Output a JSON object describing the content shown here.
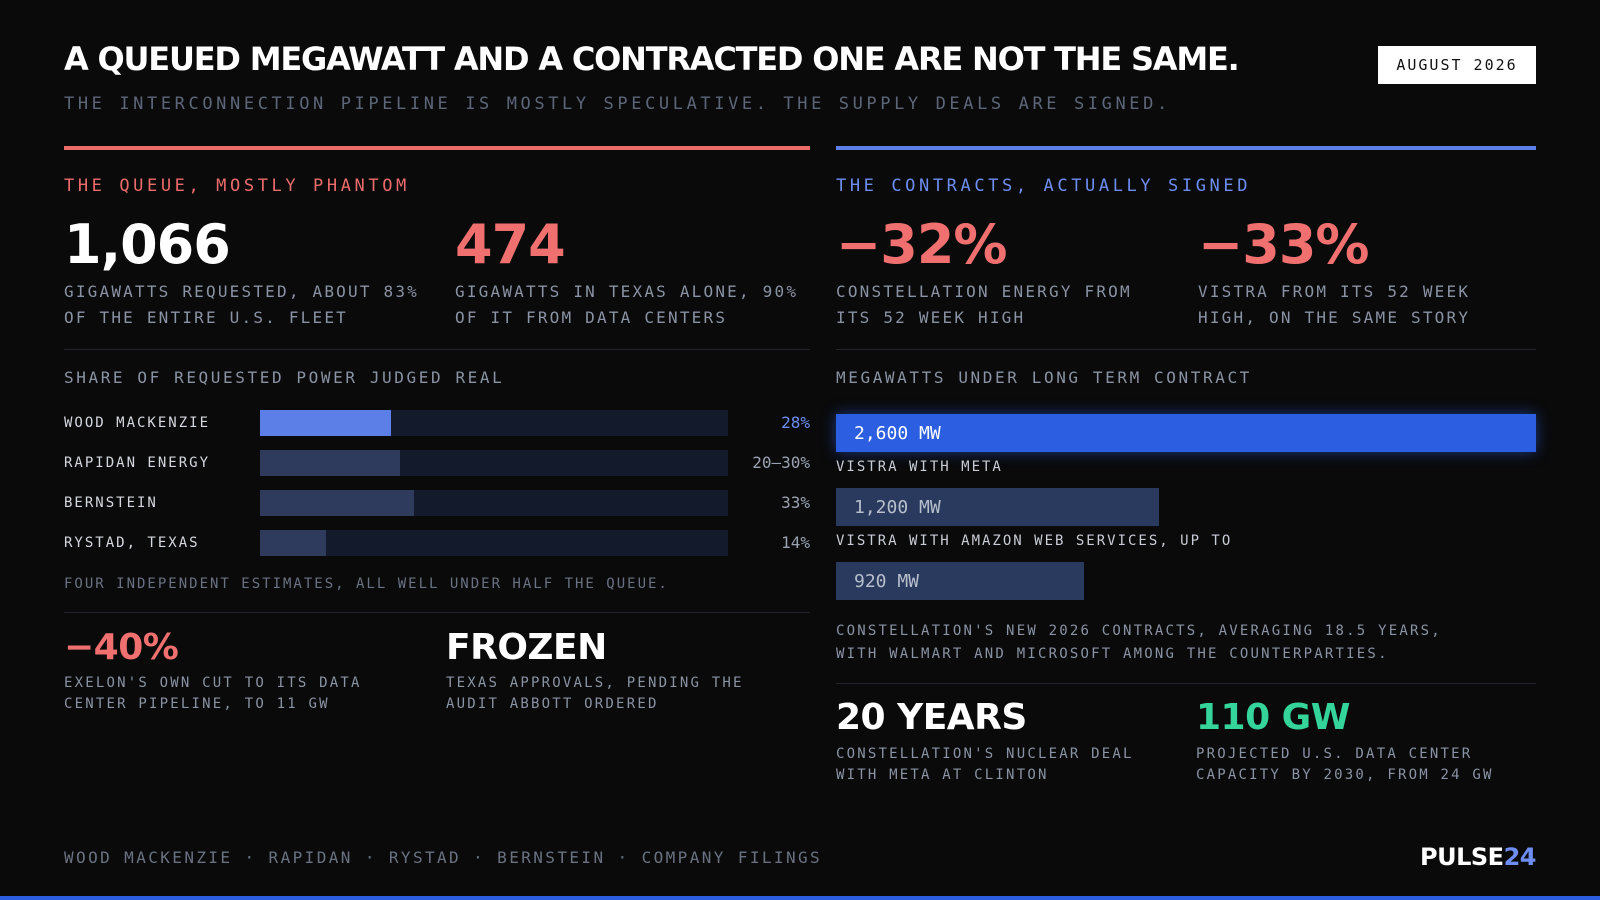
{
  "header": {
    "title": "A QUEUED MEGAWATT AND A CONTRACTED ONE ARE NOT THE SAME.",
    "subtitle": "THE INTERCONNECTION PIPELINE IS MOSTLY SPECULATIVE. THE SUPPLY DEALS ARE SIGNED.",
    "date": "AUGUST 2026"
  },
  "colors": {
    "accent_red": "#ec6b6b",
    "accent_blue": "#5b7fe6",
    "accent_green": "#34d49b",
    "bright_blue": "#2b5ee0",
    "background": "#0a0a0b"
  },
  "left": {
    "section_label": "THE QUEUE, MOSTLY PHANTOM",
    "stats": [
      {
        "value": "1,066",
        "caption_1": "GIGAWATTS REQUESTED, ABOUT 83%",
        "caption_2": "OF THE ENTIRE U.S. FLEET"
      },
      {
        "value": "474",
        "caption_1": "GIGAWATTS IN TEXAS ALONE, 90%",
        "caption_2": "OF IT FROM DATA CENTERS"
      }
    ],
    "bars_title": "SHARE OF REQUESTED POWER JUDGED REAL",
    "bars": [
      {
        "name": "WOOD MACKENZIE",
        "fraction": 0.28,
        "value": "28%"
      },
      {
        "name": "RAPIDAN ENERGY",
        "fraction": 0.3,
        "value": "20–30%"
      },
      {
        "name": "BERNSTEIN",
        "fraction": 0.33,
        "value": "33%"
      },
      {
        "name": "RYSTAD, TEXAS",
        "fraction": 0.14,
        "value": "14%"
      }
    ],
    "bars_note": "FOUR INDEPENDENT ESTIMATES, ALL WELL UNDER HALF THE QUEUE.",
    "bottom": [
      {
        "value": "−40%",
        "caption_1": "EXELON'S OWN CUT TO ITS DATA",
        "caption_2": "CENTER PIPELINE, TO 11 GW"
      },
      {
        "value": "FROZEN",
        "caption_1": "TEXAS APPROVALS, PENDING THE",
        "caption_2": "AUDIT ABBOTT ORDERED"
      }
    ]
  },
  "right": {
    "section_label": "THE CONTRACTS, ACTUALLY SIGNED",
    "stats": [
      {
        "value": "−32%",
        "caption_1": "CONSTELLATION ENERGY FROM",
        "caption_2": "ITS 52 WEEK HIGH"
      },
      {
        "value": "−33%",
        "caption_1": "VISTRA FROM ITS 52 WEEK",
        "caption_2": "HIGH, ON THE SAME STORY"
      }
    ],
    "contracts_title": "MEGAWATTS UNDER LONG TERM CONTRACT",
    "contracts": [
      {
        "value": "2,600 MW",
        "megawatts": 2600,
        "label": "VISTRA WITH META"
      },
      {
        "value": "1,200 MW",
        "megawatts": 1200,
        "label": "VISTRA WITH AMAZON WEB SERVICES, UP TO"
      },
      {
        "value": "920 MW",
        "megawatts": 920,
        "label": ""
      }
    ],
    "contracts_note_1": "CONSTELLATION'S NEW 2026 CONTRACTS, AVERAGING 18.5 YEARS,",
    "contracts_note_2": "WITH WALMART AND MICROSOFT AMONG THE COUNTERPARTIES.",
    "bottom": [
      {
        "value": "20 YEARS",
        "caption_1": "CONSTELLATION'S NUCLEAR DEAL",
        "caption_2": "WITH META AT CLINTON"
      },
      {
        "value": "110 GW",
        "caption_1": "PROJECTED U.S. DATA CENTER",
        "caption_2": "CAPACITY BY 2030, FROM 24 GW"
      }
    ]
  },
  "footer": {
    "sources": "WOOD MACKENZIE · RAPIDAN · RYSTAD · BERNSTEIN · COMPANY FILINGS",
    "logo_main": "PULSE",
    "logo_accent": "24"
  }
}
